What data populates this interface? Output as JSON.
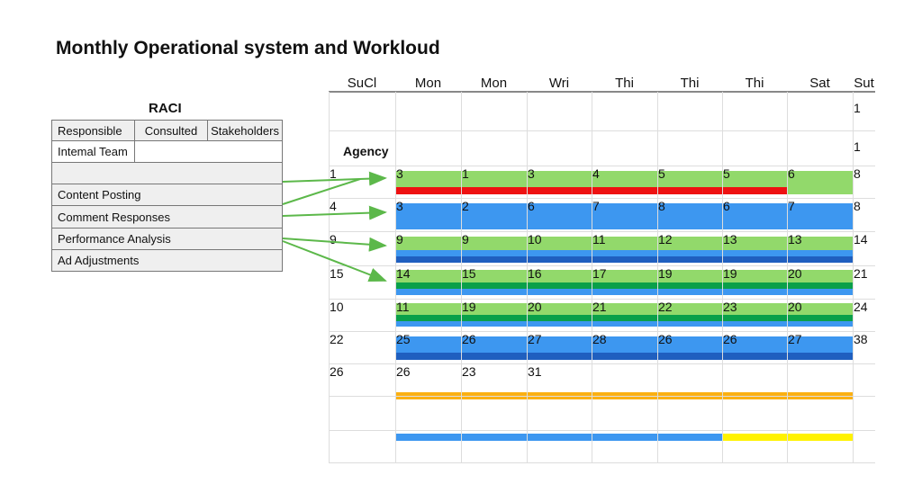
{
  "title": "Monthly Operational system and Workloud",
  "raci": {
    "title": "RACI",
    "headers": [
      "Responsible",
      "Consulted",
      "Stakeholders"
    ],
    "team": "Intemal Team",
    "tasks": [
      "Content Posting",
      "Comment Responses",
      "Performance Analysis",
      "Ad Adjustments"
    ]
  },
  "calendar": {
    "days": [
      "SuCl",
      "Mon",
      "Mon",
      "Wri",
      "Thi",
      "Thi",
      "Thi",
      "Sat",
      "Sut"
    ],
    "agency_label": "Agency",
    "rows": [
      [
        "",
        "",
        "",
        "",
        "",
        "",
        "",
        "",
        "1"
      ],
      [
        "",
        "",
        "",
        "",
        "",
        "",
        "",
        "",
        "1"
      ],
      [
        "1",
        "3",
        "1",
        "3",
        "4",
        "5",
        "5",
        "6",
        "8"
      ],
      [
        "4",
        "3",
        "2",
        "6",
        "7",
        "8",
        "6",
        "7",
        "8"
      ],
      [
        "9",
        "9",
        "9",
        "10",
        "11",
        "12",
        "13",
        "13",
        "14"
      ],
      [
        "15",
        "14",
        "15",
        "16",
        "17",
        "19",
        "19",
        "20",
        "21"
      ],
      [
        "10",
        "11",
        "19",
        "20",
        "21",
        "22",
        "23",
        "20",
        "24"
      ],
      [
        "22",
        "25",
        "26",
        "27",
        "28",
        "26",
        "26",
        "27",
        "38"
      ],
      [
        "26",
        "26",
        "23",
        "31",
        "",
        "",
        "",
        "",
        ""
      ],
      [
        "",
        "",
        "",
        "",
        "",
        "",
        "",
        "",
        ""
      ],
      [
        "",
        "",
        "",
        "",
        "",
        "",
        "",
        "",
        ""
      ]
    ]
  },
  "colors": {
    "green": "#92d96b",
    "dark_green": "#0aa04a",
    "blue": "#3d97f0",
    "dark_blue": "#1f5fbf",
    "red": "#ee1111",
    "orange": "#fbb012",
    "yellow": "#fff200",
    "arrow": "#5cb84a"
  }
}
